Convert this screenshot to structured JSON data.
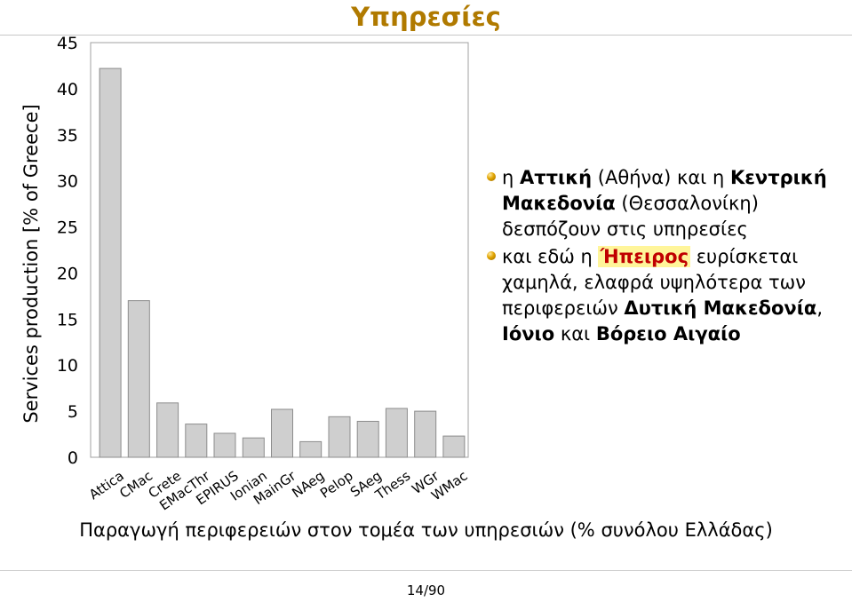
{
  "slide": {
    "title": "Υπηρεσίες",
    "caption": "Παραγωγή περιφερειών στον τομέα των υπηρεσιών (% συνόλου Ελλάδας)",
    "page_number": "14/90",
    "title_color": "#b07a00",
    "highlight_color": "#c00000"
  },
  "bullets": [
    {
      "icon": "bullet-ball-icon",
      "parts": [
        {
          "text": "η ",
          "style": "normal"
        },
        {
          "text": "Αττική",
          "style": "bold"
        },
        {
          "text": " (Αθήνα) και η ",
          "style": "normal"
        },
        {
          "text": "Κεντρική Μακεδονία",
          "style": "bold"
        },
        {
          "text": " (Θεσσαλονίκη) δεσπόζουν στις υπηρεσίες",
          "style": "normal"
        }
      ]
    },
    {
      "icon": "bullet-ball-icon",
      "parts": [
        {
          "text": "και εδώ η ",
          "style": "normal"
        },
        {
          "text": "Ήπειρος",
          "style": "highlight"
        },
        {
          "text": " ευρίσκεται χαμηλά, ελαφρά υψηλότερα των περιφερειών ",
          "style": "normal"
        },
        {
          "text": "Δυτική Μακεδονία",
          "style": "bold"
        },
        {
          "text": ", ",
          "style": "normal"
        },
        {
          "text": "Ιόνιο",
          "style": "bold"
        },
        {
          "text": " και ",
          "style": "normal"
        },
        {
          "text": "Βόρειο Αιγαίο",
          "style": "bold"
        }
      ]
    }
  ],
  "chart_data": {
    "type": "bar",
    "categories": [
      "Attica",
      "CMac",
      "Crete",
      "EMacThr",
      "EPIRUS",
      "Ionian",
      "MainGr",
      "NAeg",
      "Pelop",
      "SAeg",
      "Thess",
      "WGr",
      "WMac"
    ],
    "values": [
      42.2,
      17.0,
      5.9,
      3.6,
      2.6,
      2.1,
      5.2,
      1.7,
      4.4,
      3.9,
      5.3,
      5.0,
      2.3
    ],
    "title": "",
    "xlabel": "",
    "ylabel": "Services production [% of Greece]",
    "ylim": [
      0,
      45
    ],
    "yticks": [
      0,
      5,
      10,
      15,
      20,
      25,
      30,
      35,
      40,
      45
    ],
    "grid": false,
    "bar_color": "#cfcfcf",
    "legend": "none"
  }
}
